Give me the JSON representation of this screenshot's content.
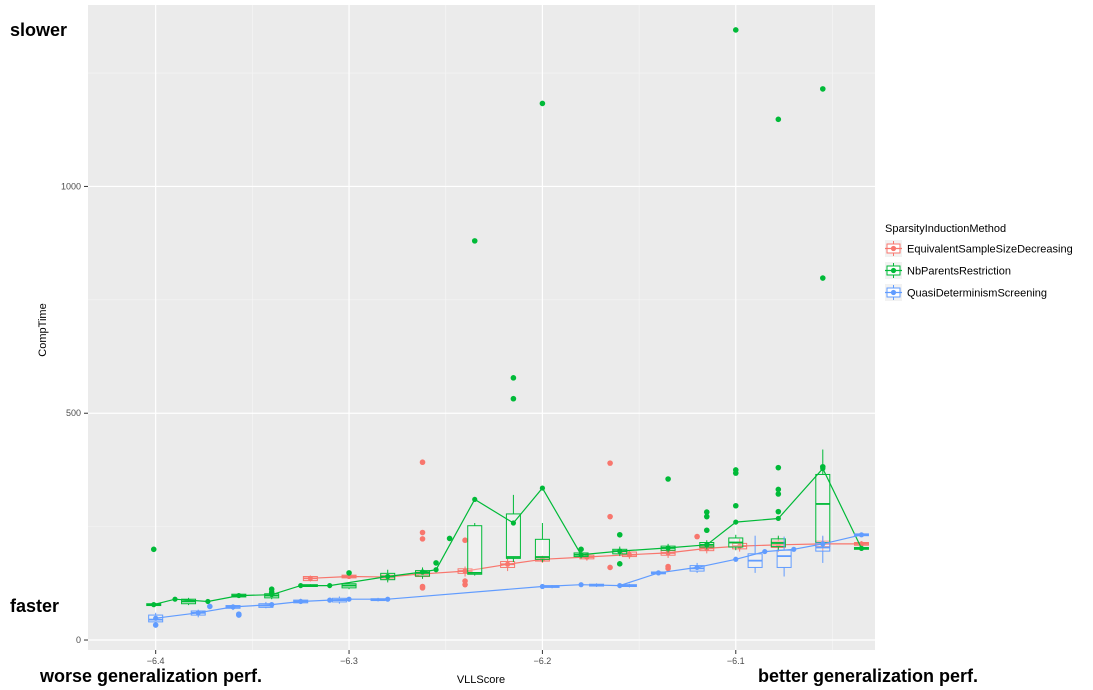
{
  "annotations": {
    "slower": "slower",
    "faster": "faster",
    "worse": "worse generalization perf.",
    "better": "better generalization perf."
  },
  "chart_data": {
    "type": "boxplot-line",
    "xlabel": "VLLScore",
    "ylabel": "CompTime",
    "xlim": [
      -6.435,
      -6.028
    ],
    "ylim": [
      -22,
      1400
    ],
    "x_ticks": [
      -6.4,
      -6.3,
      -6.2,
      -6.1
    ],
    "x_tick_labels": [
      "−6.4",
      "−6.3",
      "−6.2",
      "−6.1"
    ],
    "y_ticks": [
      0,
      500,
      1000
    ],
    "y_tick_labels": [
      "0",
      "500",
      "1000"
    ],
    "grid": true,
    "legend": {
      "title": "SparsityInductionMethod",
      "placement": "right"
    },
    "series": [
      {
        "name": "EquivalentSampleSizeDecreasing",
        "color": "#F8766D",
        "line": [
          [
            -6.32,
            136
          ],
          [
            -6.3,
            140
          ],
          [
            -6.28,
            139
          ],
          [
            -6.265,
            145
          ],
          [
            -6.24,
            152
          ],
          [
            -6.218,
            167
          ],
          [
            -6.2,
            178
          ],
          [
            -6.177,
            183
          ],
          [
            -6.155,
            188
          ],
          [
            -6.135,
            192
          ],
          [
            -6.115,
            202
          ],
          [
            -6.098,
            207
          ],
          [
            -6.078,
            210
          ],
          [
            -6.055,
            212
          ],
          [
            -6.035,
            212
          ]
        ],
        "boxes": [
          {
            "x": -6.32,
            "q1": 131,
            "med": 136,
            "q3": 140,
            "lo": 129,
            "hi": 142
          },
          {
            "x": -6.3,
            "q1": 137,
            "med": 140,
            "q3": 143,
            "lo": 135,
            "hi": 145
          },
          {
            "x": -6.28,
            "q1": 135,
            "med": 139,
            "q3": 143,
            "lo": 130,
            "hi": 147
          },
          {
            "x": -6.262,
            "q1": 140,
            "med": 145,
            "q3": 150,
            "lo": 135,
            "hi": 155
          },
          {
            "x": -6.24,
            "q1": 147,
            "med": 152,
            "q3": 157,
            "lo": 140,
            "hi": 162
          },
          {
            "x": -6.218,
            "q1": 160,
            "med": 167,
            "q3": 173,
            "lo": 152,
            "hi": 180
          },
          {
            "x": -6.2,
            "q1": 174,
            "med": 178,
            "q3": 182,
            "lo": 170,
            "hi": 186
          },
          {
            "x": -6.177,
            "q1": 179,
            "med": 183,
            "q3": 187,
            "lo": 175,
            "hi": 191
          },
          {
            "x": -6.155,
            "q1": 184,
            "med": 188,
            "q3": 194,
            "lo": 179,
            "hi": 198
          },
          {
            "x": -6.135,
            "q1": 187,
            "med": 192,
            "q3": 197,
            "lo": 181,
            "hi": 203
          },
          {
            "x": -6.115,
            "q1": 197,
            "med": 202,
            "q3": 207,
            "lo": 191,
            "hi": 213
          },
          {
            "x": -6.098,
            "q1": 201,
            "med": 207,
            "q3": 213,
            "lo": 195,
            "hi": 223
          },
          {
            "x": -6.078,
            "q1": 204,
            "med": 210,
            "q3": 218,
            "lo": 194,
            "hi": 227
          },
          {
            "x": -6.055,
            "q1": 206,
            "med": 212,
            "q3": 218,
            "lo": 196,
            "hi": 228
          },
          {
            "x": -6.035,
            "q1": 209,
            "med": 212,
            "q3": 215,
            "lo": 206,
            "hi": 218
          }
        ],
        "outliers": [
          [
            -6.262,
            392
          ],
          [
            -6.262,
            237
          ],
          [
            -6.262,
            223
          ],
          [
            -6.262,
            115
          ],
          [
            -6.262,
            118
          ],
          [
            -6.24,
            220
          ],
          [
            -6.24,
            130
          ],
          [
            -6.24,
            122
          ],
          [
            -6.165,
            390
          ],
          [
            -6.165,
            272
          ],
          [
            -6.165,
            160
          ],
          [
            -6.135,
            158
          ],
          [
            -6.135,
            162
          ],
          [
            -6.12,
            228
          ]
        ]
      },
      {
        "name": "NbParentsRestriction",
        "color": "#00BA38",
        "line": [
          [
            -6.401,
            78
          ],
          [
            -6.39,
            90
          ],
          [
            -6.373,
            85
          ],
          [
            -6.357,
            98
          ],
          [
            -6.34,
            100
          ],
          [
            -6.325,
            120
          ],
          [
            -6.31,
            120
          ],
          [
            -6.28,
            140
          ],
          [
            -6.262,
            150
          ],
          [
            -6.255,
            155
          ],
          [
            -6.235,
            310
          ],
          [
            -6.215,
            258
          ],
          [
            -6.2,
            335
          ],
          [
            -6.18,
            188
          ],
          [
            -6.16,
            196
          ],
          [
            -6.135,
            203
          ],
          [
            -6.115,
            210
          ],
          [
            -6.1,
            260
          ],
          [
            -6.078,
            268
          ],
          [
            -6.055,
            378
          ],
          [
            -6.035,
            202
          ]
        ],
        "boxes": [
          {
            "x": -6.401,
            "q1": 76,
            "med": 78,
            "q3": 80,
            "lo": 75,
            "hi": 81
          },
          {
            "x": -6.383,
            "q1": 80,
            "med": 85,
            "q3": 90,
            "lo": 77,
            "hi": 93
          },
          {
            "x": -6.357,
            "q1": 95,
            "med": 98,
            "q3": 101,
            "lo": 94,
            "hi": 103
          },
          {
            "x": -6.34,
            "q1": 93,
            "med": 98,
            "q3": 102,
            "lo": 90,
            "hi": 105
          },
          {
            "x": -6.32,
            "q1": 118,
            "med": 120,
            "q3": 122,
            "lo": 117,
            "hi": 123
          },
          {
            "x": -6.3,
            "q1": 115,
            "med": 120,
            "q3": 124,
            "lo": 112,
            "hi": 127
          },
          {
            "x": -6.28,
            "q1": 133,
            "med": 140,
            "q3": 147,
            "lo": 127,
            "hi": 155
          },
          {
            "x": -6.262,
            "q1": 141,
            "med": 148,
            "q3": 153,
            "lo": 135,
            "hi": 160
          },
          {
            "x": -6.235,
            "q1": 145,
            "med": 148,
            "q3": 252,
            "lo": 142,
            "hi": 258
          },
          {
            "x": -6.215,
            "q1": 180,
            "med": 183,
            "q3": 278,
            "lo": 172,
            "hi": 320
          },
          {
            "x": -6.2,
            "q1": 178,
            "med": 183,
            "q3": 222,
            "lo": 172,
            "hi": 258
          },
          {
            "x": -6.18,
            "q1": 184,
            "med": 188,
            "q3": 192,
            "lo": 180,
            "hi": 197
          },
          {
            "x": -6.16,
            "q1": 190,
            "med": 196,
            "q3": 200,
            "lo": 185,
            "hi": 206
          },
          {
            "x": -6.135,
            "q1": 198,
            "med": 203,
            "q3": 207,
            "lo": 193,
            "hi": 212
          },
          {
            "x": -6.115,
            "q1": 205,
            "med": 210,
            "q3": 215,
            "lo": 200,
            "hi": 220
          },
          {
            "x": -6.1,
            "q1": 205,
            "med": 215,
            "q3": 225,
            "lo": 198,
            "hi": 232
          },
          {
            "x": -6.078,
            "q1": 206,
            "med": 214,
            "q3": 223,
            "lo": 198,
            "hi": 230
          },
          {
            "x": -6.055,
            "q1": 215,
            "med": 300,
            "q3": 365,
            "lo": 205,
            "hi": 420
          },
          {
            "x": -6.035,
            "q1": 200,
            "med": 202,
            "q3": 204,
            "lo": 199,
            "hi": 206
          }
        ],
        "outliers": [
          [
            -6.401,
            200
          ],
          [
            -6.34,
            112
          ],
          [
            -6.34,
            105
          ],
          [
            -6.3,
            148
          ],
          [
            -6.255,
            170
          ],
          [
            -6.248,
            224
          ],
          [
            -6.235,
            880
          ],
          [
            -6.215,
            578
          ],
          [
            -6.215,
            532
          ],
          [
            -6.2,
            1183
          ],
          [
            -6.18,
            200
          ],
          [
            -6.16,
            232
          ],
          [
            -6.16,
            168
          ],
          [
            -6.135,
            355
          ],
          [
            -6.115,
            282
          ],
          [
            -6.115,
            272
          ],
          [
            -6.115,
            242
          ],
          [
            -6.1,
            1345
          ],
          [
            -6.1,
            375
          ],
          [
            -6.1,
            368
          ],
          [
            -6.1,
            296
          ],
          [
            -6.078,
            1148
          ],
          [
            -6.078,
            380
          ],
          [
            -6.078,
            332
          ],
          [
            -6.078,
            322
          ],
          [
            -6.078,
            283
          ],
          [
            -6.055,
            1215
          ],
          [
            -6.055,
            798
          ],
          [
            -6.055,
            382
          ]
        ]
      },
      {
        "name": "QuasiDeterminismScreening",
        "color": "#619CFF",
        "line": [
          [
            -6.4,
            48
          ],
          [
            -6.378,
            60
          ],
          [
            -6.36,
            73
          ],
          [
            -6.34,
            78
          ],
          [
            -6.325,
            85
          ],
          [
            -6.31,
            88
          ],
          [
            -6.3,
            90
          ],
          [
            -6.28,
            90
          ],
          [
            -6.2,
            118
          ],
          [
            -6.18,
            122
          ],
          [
            -6.16,
            120
          ],
          [
            -6.14,
            148
          ],
          [
            -6.12,
            160
          ],
          [
            -6.1,
            178
          ],
          [
            -6.085,
            195
          ],
          [
            -6.07,
            200
          ],
          [
            -6.055,
            212
          ],
          [
            -6.035,
            232
          ]
        ],
        "boxes": [
          {
            "x": -6.4,
            "q1": 40,
            "med": 45,
            "q3": 55,
            "lo": 36,
            "hi": 60
          },
          {
            "x": -6.378,
            "q1": 55,
            "med": 60,
            "q3": 64,
            "lo": 50,
            "hi": 67
          },
          {
            "x": -6.36,
            "q1": 70,
            "med": 73,
            "q3": 76,
            "lo": 66,
            "hi": 78
          },
          {
            "x": -6.343,
            "q1": 72,
            "med": 76,
            "q3": 80,
            "lo": 70,
            "hi": 84
          },
          {
            "x": -6.325,
            "q1": 82,
            "med": 85,
            "q3": 88,
            "lo": 80,
            "hi": 91
          },
          {
            "x": -6.305,
            "q1": 84,
            "med": 88,
            "q3": 92,
            "lo": 80,
            "hi": 96
          },
          {
            "x": -6.285,
            "q1": 87,
            "med": 89,
            "q3": 91,
            "lo": 85,
            "hi": 93
          },
          {
            "x": -6.195,
            "q1": 116,
            "med": 118,
            "q3": 120,
            "lo": 114,
            "hi": 121
          },
          {
            "x": -6.172,
            "q1": 119,
            "med": 121,
            "q3": 123,
            "lo": 117,
            "hi": 125
          },
          {
            "x": -6.155,
            "q1": 118,
            "med": 120,
            "q3": 122,
            "lo": 116,
            "hi": 124
          },
          {
            "x": -6.14,
            "q1": 146,
            "med": 148,
            "q3": 150,
            "lo": 144,
            "hi": 152
          },
          {
            "x": -6.12,
            "q1": 152,
            "med": 158,
            "q3": 164,
            "lo": 148,
            "hi": 170
          },
          {
            "x": -6.09,
            "q1": 160,
            "med": 175,
            "q3": 190,
            "lo": 148,
            "hi": 230
          },
          {
            "x": -6.075,
            "q1": 160,
            "med": 185,
            "q3": 198,
            "lo": 140,
            "hi": 228
          },
          {
            "x": -6.055,
            "q1": 196,
            "med": 204,
            "q3": 214,
            "lo": 170,
            "hi": 230
          },
          {
            "x": -6.035,
            "q1": 230,
            "med": 232,
            "q3": 234,
            "lo": 228,
            "hi": 236
          }
        ],
        "outliers": [
          [
            -6.4,
            33
          ],
          [
            -6.372,
            74
          ],
          [
            -6.357,
            57
          ],
          [
            -6.357,
            55
          ]
        ]
      }
    ]
  }
}
